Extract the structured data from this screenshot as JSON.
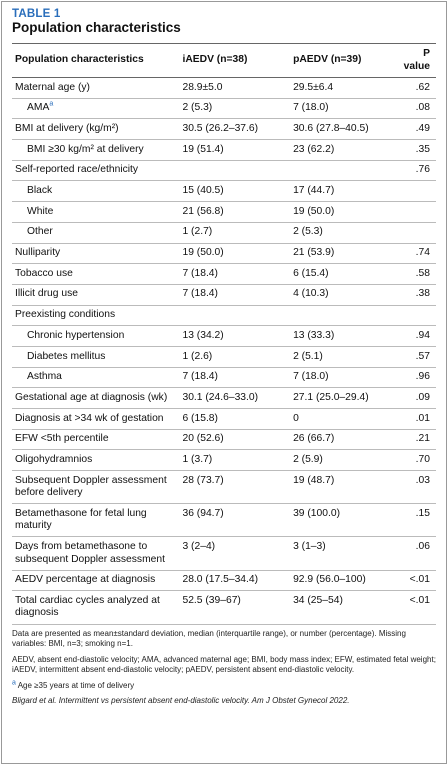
{
  "header": {
    "label": "TABLE 1",
    "title": "Population characteristics"
  },
  "table": {
    "columns": [
      "Population characteristics",
      "iAEDV (n=38)",
      "pAEDV (n=39)",
      "P value"
    ],
    "rows": [
      {
        "label": "Maternal age (y)",
        "iaedv": "28.9±5.0",
        "paedv": "29.5±6.4",
        "p": ".62",
        "sub": [
          {
            "label": "AMA",
            "note": "a",
            "iaedv": "2 (5.3)",
            "paedv": "7 (18.0)",
            "p": ".08"
          }
        ]
      },
      {
        "label": "BMI at delivery (kg/m²)",
        "iaedv": "30.5 (26.2–37.6)",
        "paedv": "30.6 (27.8–40.5)",
        "p": ".49",
        "sub": [
          {
            "label": "BMI ≥30 kg/m² at delivery",
            "iaedv": "19 (51.4)",
            "paedv": "23 (62.2)",
            "p": ".35"
          }
        ]
      },
      {
        "label": "Self-reported race/ethnicity",
        "p": ".76",
        "sub": [
          {
            "label": "Black",
            "iaedv": "15 (40.5)",
            "paedv": "17 (44.7)"
          },
          {
            "label": "White",
            "iaedv": "21 (56.8)",
            "paedv": "19 (50.0)"
          },
          {
            "label": "Other",
            "iaedv": "1 (2.7)",
            "paedv": "2 (5.3)"
          }
        ]
      },
      {
        "label": "Nulliparity",
        "iaedv": "19 (50.0)",
        "paedv": "21 (53.9)",
        "p": ".74"
      },
      {
        "label": "Tobacco use",
        "iaedv": "7 (18.4)",
        "paedv": "6 (15.4)",
        "p": ".58"
      },
      {
        "label": "Illicit drug use",
        "iaedv": "7 (18.4)",
        "paedv": "4 (10.3)",
        "p": ".38"
      },
      {
        "label": "Preexisting conditions",
        "sub": [
          {
            "label": "Chronic hypertension",
            "iaedv": "13 (34.2)",
            "paedv": "13 (33.3)",
            "p": ".94"
          },
          {
            "label": "Diabetes mellitus",
            "iaedv": "1 (2.6)",
            "paedv": "2 (5.1)",
            "p": ".57"
          },
          {
            "label": "Asthma",
            "iaedv": "7 (18.4)",
            "paedv": "7 (18.0)",
            "p": ".96"
          }
        ]
      },
      {
        "label": "Gestational age at diagnosis (wk)",
        "iaedv": "30.1 (24.6–33.0)",
        "paedv": "27.1 (25.0–29.4)",
        "p": ".09"
      },
      {
        "label": "Diagnosis at >34 wk of gestation",
        "iaedv": "6 (15.8)",
        "paedv": "0",
        "p": ".01"
      },
      {
        "label": "EFW <5th percentile",
        "iaedv": "20 (52.6)",
        "paedv": "26 (66.7)",
        "p": ".21"
      },
      {
        "label": "Oligohydramnios",
        "iaedv": "1 (3.7)",
        "paedv": "2 (5.9)",
        "p": ".70"
      },
      {
        "label": "Subsequent Doppler assessment before delivery",
        "iaedv": "28 (73.7)",
        "paedv": "19 (48.7)",
        "p": ".03"
      },
      {
        "label": "Betamethasone for fetal lung maturity",
        "iaedv": "36 (94.7)",
        "paedv": "39 (100.0)",
        "p": ".15"
      },
      {
        "label": "Days from betamethasone to subsequent Doppler assessment",
        "iaedv": "3 (2–4)",
        "paedv": "3 (1–3)",
        "p": ".06"
      },
      {
        "label": "AEDV percentage at diagnosis",
        "iaedv": "28.0 (17.5–34.4)",
        "paedv": "92.9 (56.0–100)",
        "p": "<.01"
      },
      {
        "label": "Total cardiac cycles analyzed at diagnosis",
        "iaedv": "52.5 (39–67)",
        "paedv": "34 (25–54)",
        "p": "<.01"
      }
    ]
  },
  "notes": [
    "Data are presented as mean±standard deviation, median (interquartile range), or number (percentage). Missing variables: BMI, n=3; smoking n=1.",
    "AEDV, absent end-diastolic velocity; AMA, advanced maternal age; BMI, body mass index; EFW, estimated fetal weight; iAEDV, intermittent absent end-diastolic velocity; pAEDV, persistent absent end-diastolic velocity."
  ],
  "footnote": {
    "mark": "a",
    "text": "Age ≥35 years at time of delivery"
  },
  "citation": "Bligard et al. Intermittent vs persistent absent end-diastolic velocity. Am J Obstet Gynecol 2022."
}
